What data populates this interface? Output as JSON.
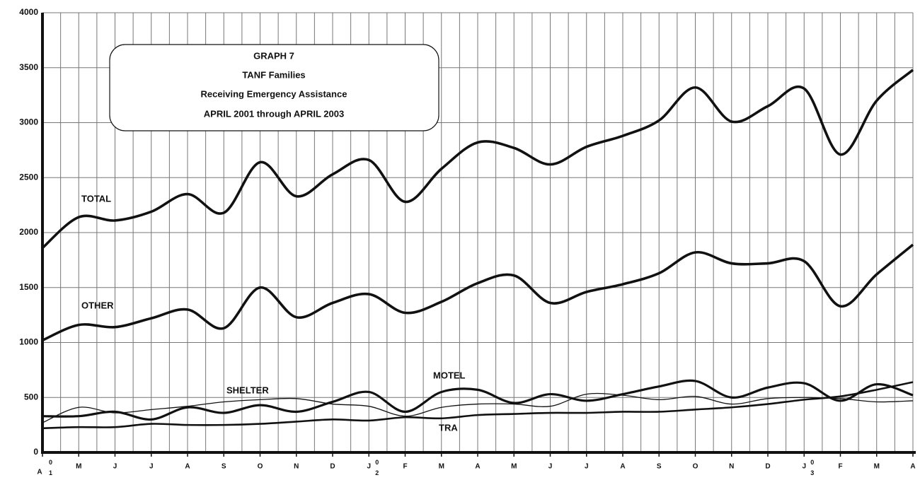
{
  "chart_data": {
    "type": "line",
    "title": "GRAPH 7",
    "subtitle": [
      "TANF Families",
      "Receiving Emergency Assistance",
      "APRIL 2001 through APRIL 2003"
    ],
    "categories": [
      "A",
      "M",
      "J",
      "J",
      "A",
      "S",
      "O",
      "N",
      "D",
      "J",
      "F",
      "M",
      "A",
      "M",
      "J",
      "J",
      "A",
      "S",
      "O",
      "N",
      "D",
      "J",
      "F",
      "M",
      "A"
    ],
    "category_years": [
      "01",
      null,
      null,
      null,
      null,
      null,
      null,
      null,
      null,
      "02",
      null,
      null,
      null,
      null,
      null,
      null,
      null,
      null,
      null,
      null,
      null,
      "03",
      null,
      null,
      null
    ],
    "ylim": [
      0,
      4000
    ],
    "yticks": [
      0,
      500,
      1000,
      1500,
      2000,
      2500,
      3000,
      3500,
      4000
    ],
    "grid": true,
    "series": [
      {
        "name": "TOTAL",
        "color": "#111111",
        "values": [
          1860,
          2140,
          2110,
          2190,
          2350,
          2180,
          2640,
          2330,
          2530,
          2660,
          2280,
          2580,
          2820,
          2770,
          2620,
          2780,
          2880,
          3020,
          3320,
          3010,
          3150,
          3310,
          2710,
          3200,
          3480
        ]
      },
      {
        "name": "OTHER",
        "color": "#111111",
        "values": [
          1020,
          1160,
          1140,
          1220,
          1300,
          1130,
          1500,
          1230,
          1360,
          1440,
          1270,
          1370,
          1540,
          1610,
          1360,
          1460,
          1530,
          1630,
          1820,
          1720,
          1720,
          1740,
          1330,
          1620,
          1890
        ]
      },
      {
        "name": "SHELTER",
        "color": "#111111",
        "values": [
          270,
          410,
          360,
          390,
          420,
          460,
          480,
          490,
          440,
          420,
          330,
          410,
          440,
          440,
          420,
          530,
          520,
          480,
          510,
          440,
          490,
          500,
          490,
          460,
          470
        ]
      },
      {
        "name": "MOTEL",
        "color": "#111111",
        "values": [
          330,
          330,
          370,
          300,
          410,
          360,
          430,
          370,
          460,
          550,
          370,
          550,
          570,
          450,
          530,
          470,
          530,
          600,
          650,
          500,
          590,
          630,
          470,
          620,
          520
        ]
      },
      {
        "name": "TRA",
        "color": "#111111",
        "values": [
          220,
          230,
          230,
          260,
          250,
          250,
          260,
          280,
          300,
          290,
          320,
          310,
          340,
          350,
          360,
          360,
          370,
          370,
          390,
          410,
          440,
          480,
          510,
          570,
          640
        ]
      }
    ]
  }
}
